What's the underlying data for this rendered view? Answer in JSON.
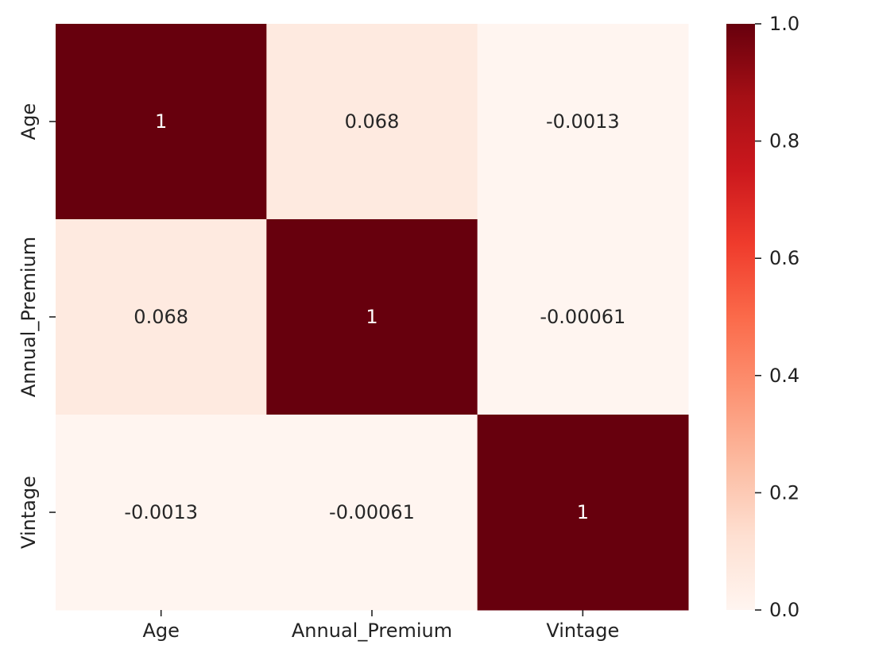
{
  "chart_data": {
    "type": "heatmap",
    "x_categories": [
      "Age",
      "Annual_Premium",
      "Vintage"
    ],
    "y_categories": [
      "Age",
      "Annual_Premium",
      "Vintage"
    ],
    "values": [
      [
        1,
        0.068,
        -0.0013
      ],
      [
        0.068,
        1,
        -0.00061
      ],
      [
        -0.0013,
        -0.00061,
        1
      ]
    ],
    "annotations": [
      [
        "1",
        "0.068",
        "-0.0013"
      ],
      [
        "0.068",
        "1",
        "-0.00061"
      ],
      [
        "-0.0013",
        "-0.00061",
        "1"
      ]
    ],
    "colorbar": {
      "min": 0.0,
      "max": 1.0,
      "ticks": [
        0.0,
        0.2,
        0.4,
        0.6,
        0.8,
        1.0
      ],
      "tick_labels": [
        "0.0",
        "0.2",
        "0.4",
        "0.6",
        "0.8",
        "1.0"
      ],
      "colormap": "Reds"
    },
    "colormap_stops": [
      "#fff5f0",
      "#fee0d2",
      "#fcbba1",
      "#fc9272",
      "#fb6a4a",
      "#ef3b2c",
      "#cb181d",
      "#a50f15",
      "#67000d"
    ],
    "annotation_text_colors": {
      "dark_cell": "#ffffff",
      "light_cell": "#262626"
    },
    "title": "",
    "xlabel": "",
    "ylabel": ""
  }
}
